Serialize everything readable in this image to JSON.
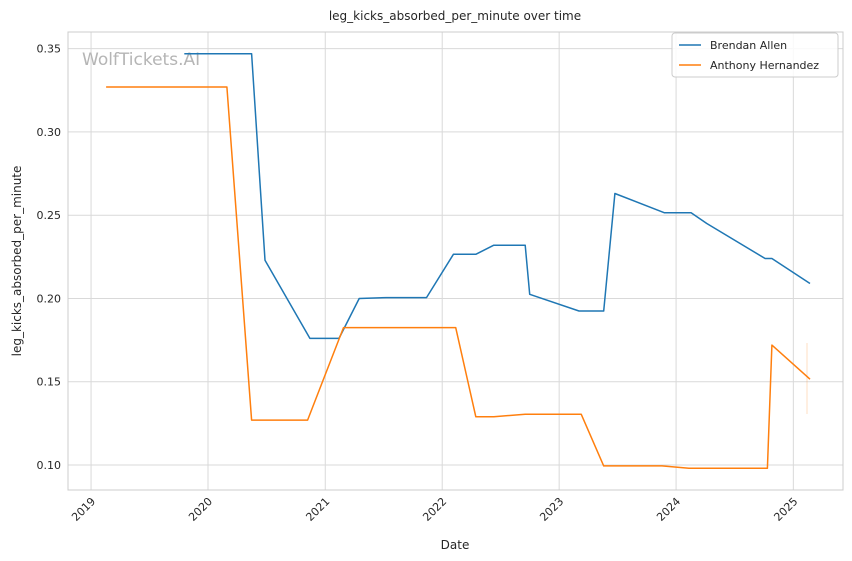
{
  "chart_data": {
    "type": "line",
    "title": "leg_kicks_absorbed_per_minute over time",
    "xlabel": "Date",
    "ylabel": "leg_kicks_absorbed_per_minute",
    "x_ticks": [
      "2019",
      "2020",
      "2021",
      "2022",
      "2023",
      "2024",
      "2025"
    ],
    "y_ticks": [
      "0.10",
      "0.15",
      "0.20",
      "0.25",
      "0.30",
      "0.35"
    ],
    "xlim": [
      "2018-10-21",
      "2025-06-05"
    ],
    "ylim": [
      0.085,
      0.36
    ],
    "grid": true,
    "legend_position": "top-right",
    "watermark": "WolfTickets.AI",
    "series": [
      {
        "name": "Brendan Allen",
        "color": "#1f77b4",
        "points": [
          [
            "2019-10-19",
            0.347
          ],
          [
            "2020-05-16",
            0.347
          ],
          [
            "2020-06-27",
            0.223
          ],
          [
            "2020-11-14",
            0.176
          ],
          [
            "2021-02-13",
            0.176
          ],
          [
            "2021-04-17",
            0.2
          ],
          [
            "2021-07-10",
            0.2005
          ],
          [
            "2021-11-13",
            0.2005
          ],
          [
            "2022-02-05",
            0.2265
          ],
          [
            "2022-04-16",
            0.2265
          ],
          [
            "2022-06-11",
            0.232
          ],
          [
            "2022-09-17",
            0.232
          ],
          [
            "2022-10-01",
            0.2025
          ],
          [
            "2023-03-04",
            0.1925
          ],
          [
            "2023-05-20",
            0.1925
          ],
          [
            "2023-06-24",
            0.263
          ],
          [
            "2023-11-25",
            0.2515
          ],
          [
            "2024-02-17",
            0.2515
          ],
          [
            "2024-04-06",
            0.245
          ],
          [
            "2024-10-05",
            0.224
          ],
          [
            "2024-10-26",
            0.224
          ],
          [
            "2025-02-22",
            0.209
          ]
        ]
      },
      {
        "name": "Anthony Hernandez",
        "color": "#ff7f0e",
        "points": [
          [
            "2019-02-17",
            0.327
          ],
          [
            "2020-02-29",
            0.327
          ],
          [
            "2020-05-16",
            0.127
          ],
          [
            "2020-11-07",
            0.127
          ],
          [
            "2021-02-27",
            0.1825
          ],
          [
            "2022-02-12",
            0.1825
          ],
          [
            "2022-04-16",
            0.129
          ],
          [
            "2022-06-11",
            0.129
          ],
          [
            "2022-09-17",
            0.1305
          ],
          [
            "2023-03-11",
            0.1305
          ],
          [
            "2023-05-20",
            0.0995
          ],
          [
            "2023-11-18",
            0.0995
          ],
          [
            "2024-02-10",
            0.098
          ],
          [
            "2024-10-12",
            0.098
          ],
          [
            "2024-10-26",
            0.172
          ],
          [
            "2025-02-22",
            0.1515
          ]
        ]
      }
    ]
  }
}
